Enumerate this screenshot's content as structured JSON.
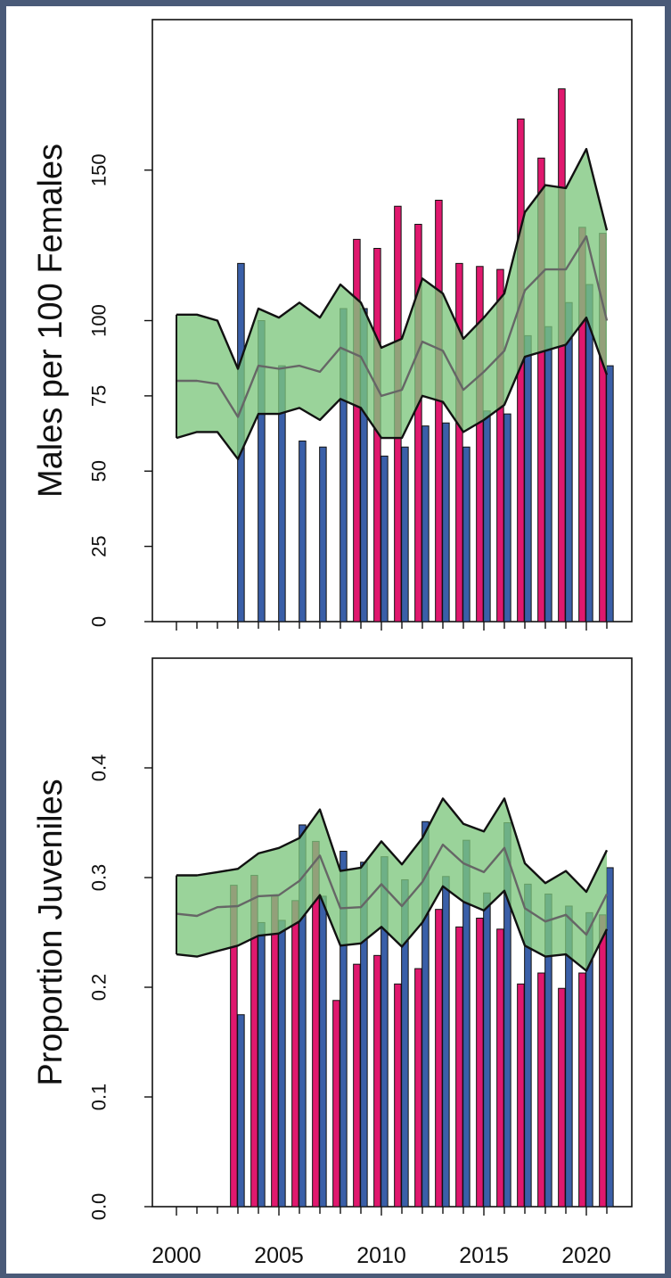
{
  "chart_data": [
    {
      "type": "bar",
      "title": "",
      "xlabel": "",
      "ylabel": "Males per 100 Females",
      "ylim": [
        0,
        200
      ],
      "yticks": [
        0,
        25,
        50,
        75,
        100,
        150
      ],
      "xticks": [
        2000,
        2005,
        2010,
        2015,
        2020
      ],
      "xlim": [
        1999,
        2022
      ],
      "series": [
        {
          "values": [
            null,
            null,
            null,
            null,
            null,
            null,
            null,
            null,
            null,
            127,
            124,
            138,
            132,
            140,
            119,
            118,
            117,
            167,
            154,
            177,
            131,
            129
          ],
          "color": "#e0186e"
        },
        {
          "values": [
            null,
            null,
            null,
            119,
            100,
            85,
            60,
            58,
            104,
            104,
            55,
            58,
            65,
            66,
            58,
            70,
            69,
            95,
            98,
            106,
            112,
            85
          ],
          "color": "#3a5fa8"
        }
      ],
      "x": [
        2000,
        2001,
        2002,
        2003,
        2004,
        2005,
        2006,
        2007,
        2008,
        2009,
        2010,
        2011,
        2012,
        2013,
        2014,
        2015,
        2016,
        2017,
        2018,
        2019,
        2020,
        2021
      ],
      "band": {
        "x": [
          2000,
          2001,
          2002,
          2003,
          2004,
          2005,
          2006,
          2007,
          2008,
          2009,
          2010,
          2011,
          2012,
          2013,
          2014,
          2015,
          2016,
          2017,
          2018,
          2019,
          2020,
          2021
        ],
        "upper": [
          102,
          102,
          100,
          84,
          104,
          101,
          106,
          101,
          112,
          106,
          91,
          94,
          114,
          109,
          94,
          101,
          109,
          136,
          145,
          144,
          157,
          130
        ],
        "mean": [
          80,
          80,
          79,
          68,
          85,
          84,
          85,
          83,
          91,
          88,
          75,
          77,
          93,
          90,
          77,
          83,
          90,
          110,
          117,
          117,
          128,
          100
        ],
        "lower": [
          61,
          63,
          63,
          54,
          69,
          69,
          71,
          67,
          74,
          71,
          61,
          61,
          75,
          73,
          63,
          67,
          72,
          88,
          90,
          92,
          101,
          82
        ],
        "fill": "#7dc77d",
        "line": "#666666"
      }
    },
    {
      "type": "bar",
      "title": "",
      "xlabel": "",
      "ylabel": "Proportion Juveniles",
      "ylim": [
        0,
        0.5
      ],
      "yticks": [
        0.0,
        0.1,
        0.2,
        0.3,
        0.4
      ],
      "ytick_labels": [
        "0.0",
        "0.1",
        "0.2",
        "0.3",
        "0.4"
      ],
      "xticks": [
        2000,
        2005,
        2010,
        2015,
        2020
      ],
      "xlim": [
        1999,
        2022
      ],
      "series": [
        {
          "values": [
            null,
            null,
            null,
            0.293,
            0.302,
            0.283,
            0.279,
            0.333,
            0.188,
            0.221,
            0.229,
            0.203,
            0.217,
            0.271,
            0.255,
            0.263,
            0.253,
            0.203,
            0.213,
            0.199,
            0.213,
            0.266
          ],
          "color": "#e0186e"
        },
        {
          "values": [
            null,
            null,
            null,
            0.175,
            0.259,
            0.261,
            0.348,
            0.283,
            0.324,
            0.314,
            0.319,
            0.298,
            0.351,
            0.301,
            0.334,
            0.286,
            0.35,
            0.294,
            0.285,
            0.274,
            0.268,
            0.309
          ],
          "color": "#3a5fa8"
        }
      ],
      "x": [
        2000,
        2001,
        2002,
        2003,
        2004,
        2005,
        2006,
        2007,
        2008,
        2009,
        2010,
        2011,
        2012,
        2013,
        2014,
        2015,
        2016,
        2017,
        2018,
        2019,
        2020,
        2021
      ],
      "band": {
        "x": [
          2000,
          2001,
          2002,
          2003,
          2004,
          2005,
          2006,
          2007,
          2008,
          2009,
          2010,
          2011,
          2012,
          2013,
          2014,
          2015,
          2016,
          2017,
          2018,
          2019,
          2020,
          2021
        ],
        "upper": [
          0.302,
          0.302,
          0.305,
          0.308,
          0.322,
          0.327,
          0.336,
          0.362,
          0.306,
          0.309,
          0.333,
          0.312,
          0.336,
          0.372,
          0.349,
          0.342,
          0.372,
          0.313,
          0.295,
          0.306,
          0.287,
          0.325
        ],
        "mean": [
          0.267,
          0.265,
          0.273,
          0.274,
          0.283,
          0.284,
          0.297,
          0.32,
          0.272,
          0.273,
          0.294,
          0.274,
          0.296,
          0.33,
          0.313,
          0.305,
          0.327,
          0.272,
          0.26,
          0.266,
          0.248,
          0.285
        ],
        "lower": [
          0.23,
          0.228,
          0.233,
          0.238,
          0.247,
          0.249,
          0.26,
          0.284,
          0.238,
          0.24,
          0.255,
          0.237,
          0.259,
          0.292,
          0.278,
          0.27,
          0.288,
          0.238,
          0.228,
          0.23,
          0.215,
          0.253
        ],
        "fill": "#7dc77d",
        "line": "#666666"
      }
    }
  ]
}
